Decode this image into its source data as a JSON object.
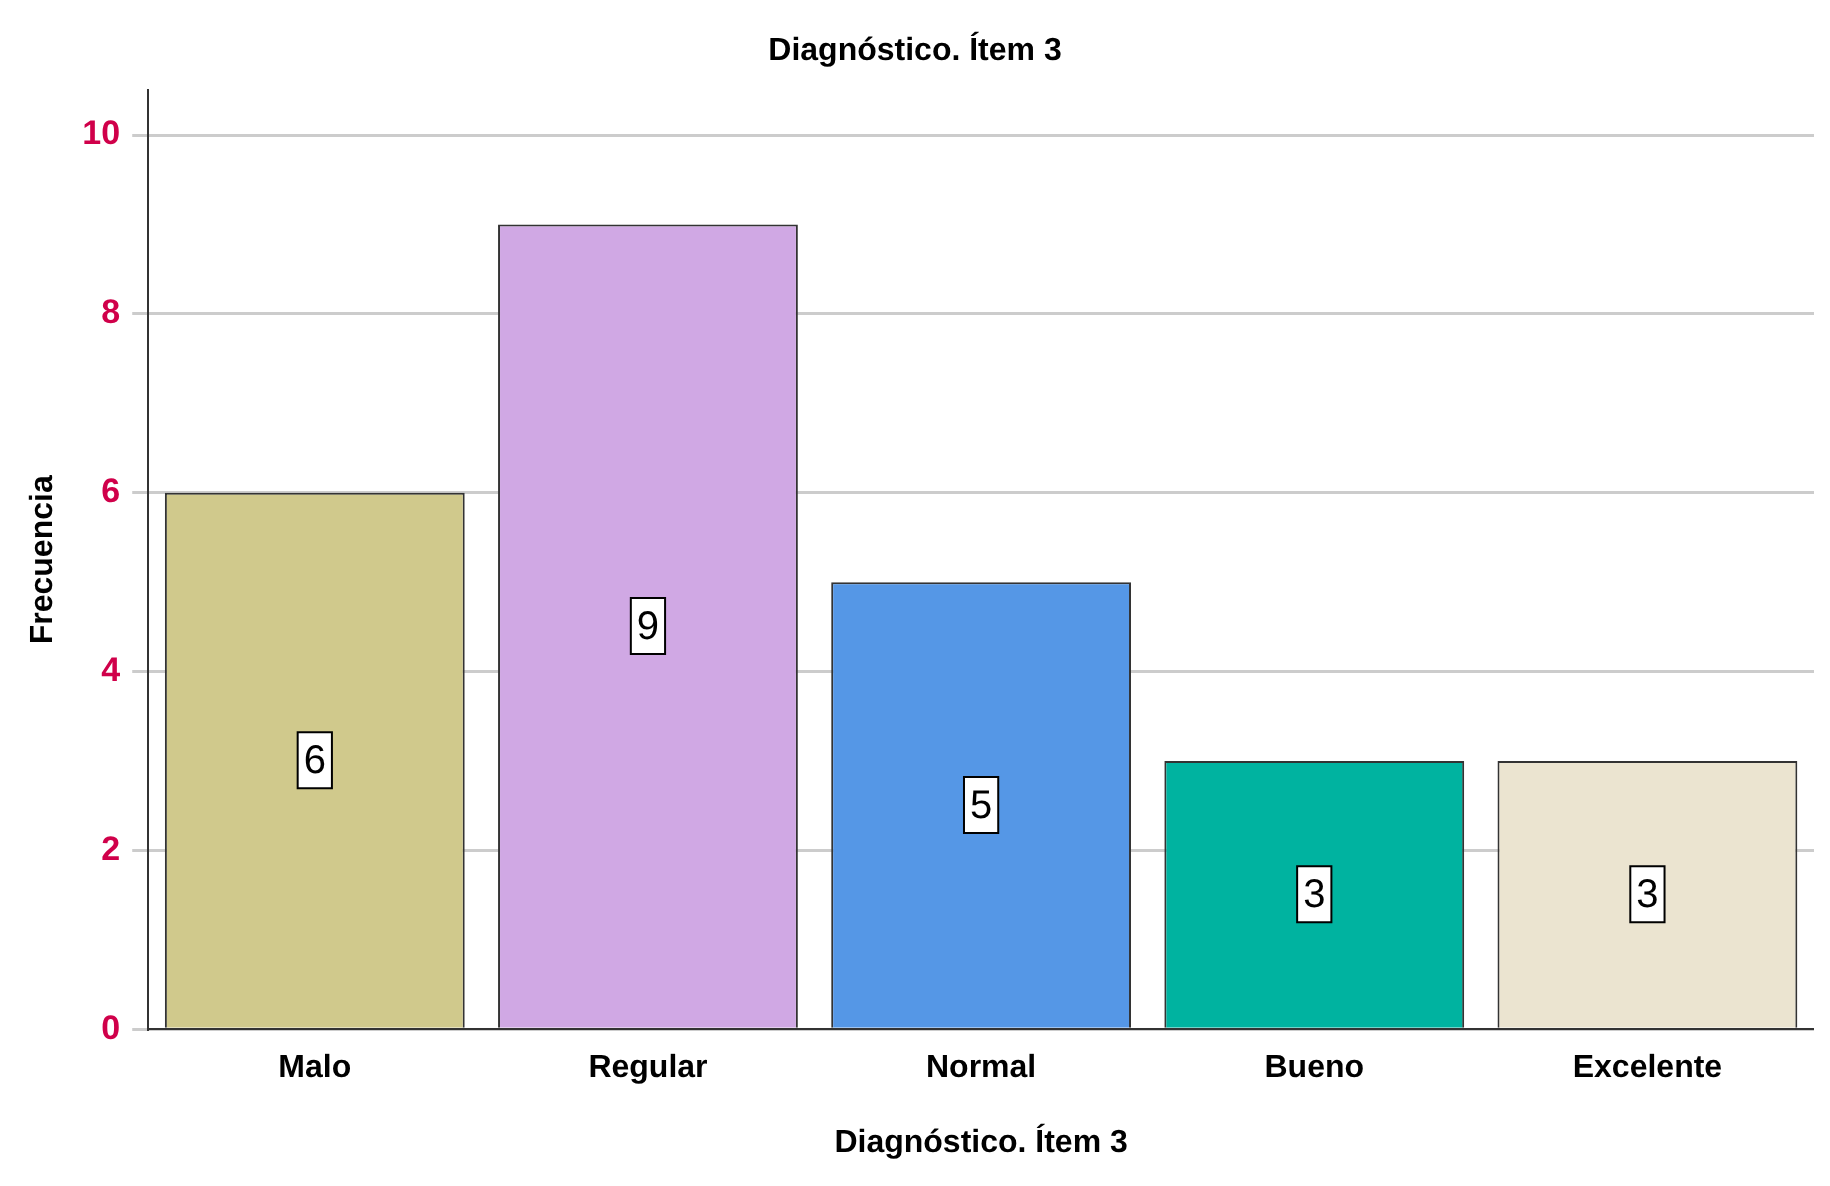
{
  "chart_data": {
    "type": "bar",
    "title": "Diagnóstico. Ítem 3",
    "xlabel": "Diagnóstico. Ítem 3",
    "ylabel": "Frecuencia",
    "categories": [
      "Malo",
      "Regular",
      "Normal",
      "Bueno",
      "Excelente"
    ],
    "values": [
      6,
      9,
      5,
      3,
      3
    ],
    "colors": [
      "#d0c98c",
      "#d0a8e4",
      "#5597e6",
      "#00b3a0",
      "#ebe4d0"
    ],
    "ylim": [
      0,
      10.5
    ],
    "yticks": [
      0,
      2,
      4,
      6,
      8,
      10
    ],
    "grid": "y",
    "data_labels": true,
    "legend": false
  }
}
